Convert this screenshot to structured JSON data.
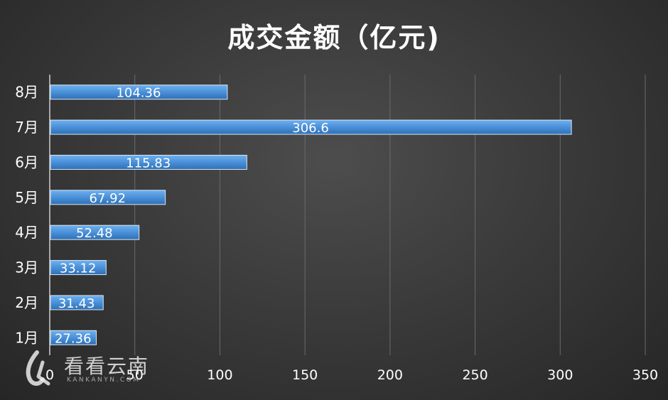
{
  "chart_data": {
    "type": "bar",
    "orientation": "horizontal",
    "title": "成交金额（亿元)",
    "categories": [
      "1月",
      "2月",
      "3月",
      "4月",
      "5月",
      "6月",
      "7月",
      "8月"
    ],
    "values": [
      27.36,
      31.43,
      33.12,
      52.48,
      67.92,
      115.83,
      306.6,
      104.36
    ],
    "data_labels": [
      "27.36",
      "31.43",
      "33.12",
      "52.48",
      "67.92",
      "115.83",
      "306.6",
      "104.36"
    ],
    "xlim": [
      0,
      350
    ],
    "xticks": [
      0,
      50,
      100,
      150,
      200,
      250,
      300,
      350
    ],
    "xtick_labels": [
      "0",
      "50",
      "100",
      "150",
      "200",
      "250",
      "300",
      "350"
    ],
    "grid": "vertical",
    "legend": "none",
    "colors": {
      "bar": "#4a90d9",
      "background": "#3c3c3c",
      "text": "#ffffff",
      "grid": "#6a6a6a"
    }
  },
  "watermark": {
    "brand": "看看云南",
    "domain": "KANKANYN.COM"
  }
}
